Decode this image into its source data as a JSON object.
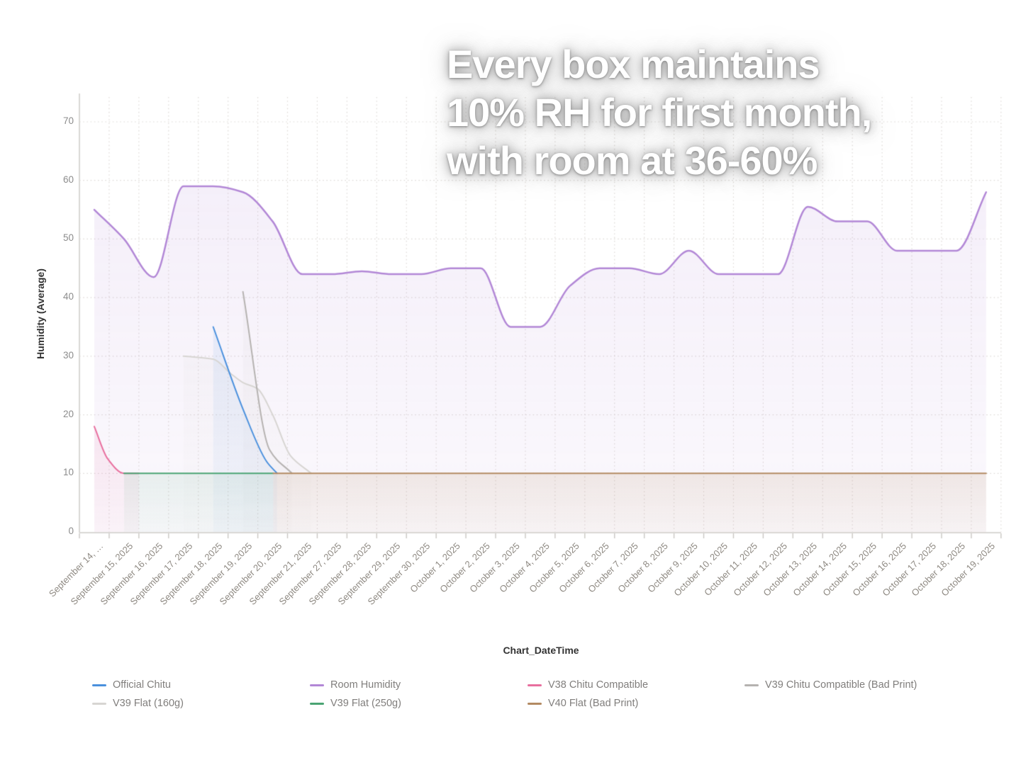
{
  "overlay_title": {
    "lines": [
      "Every box maintains",
      "10% RH for first month,",
      "with room at 36-60%"
    ]
  },
  "chart_data": {
    "type": "line",
    "xlabel": "Chart_DateTime",
    "ylabel": "Humidity (Average)",
    "ylim": [
      0,
      75
    ],
    "yticks": [
      0,
      10,
      20,
      30,
      40,
      50,
      60,
      70
    ],
    "grid": "dotted",
    "legend_position": "bottom",
    "x_labels": [
      "September 14, …",
      "September 15, 2025",
      "September 16, 2025",
      "September 17, 2025",
      "September 18, 2025",
      "September 19, 2025",
      "September 20, 2025",
      "September 21, 2025",
      "September 27, 2025",
      "September 28, 2025",
      "September 29, 2025",
      "September 30, 2025",
      "October 1, 2025",
      "October 2, 2025",
      "October 3, 2025",
      "October 4, 2025",
      "October 5, 2025",
      "October 6, 2025",
      "October 7, 2025",
      "October 8, 2025",
      "October 9, 2025",
      "October 10, 2025",
      "October 11, 2025",
      "October 12, 2025",
      "October 13, 2025",
      "October 14, 2025",
      "October 15, 2025",
      "October 16, 2025",
      "October 17, 2025",
      "October 18, 2025",
      "October 19, 2025"
    ],
    "series": [
      {
        "name": "Official Chitu",
        "color": "#4a90dd",
        "points": [
          [
            4,
            35
          ],
          [
            5,
            21
          ],
          [
            5.8,
            12
          ],
          [
            6.15,
            10
          ]
        ]
      },
      {
        "name": "Room Humidity",
        "color": "#b287d6",
        "points": [
          [
            0,
            55
          ],
          [
            1,
            50
          ],
          [
            2,
            43.5
          ],
          [
            3,
            59
          ],
          [
            4,
            59
          ],
          [
            5,
            58
          ],
          [
            6,
            53
          ],
          [
            7,
            44
          ],
          [
            8,
            44
          ],
          [
            9,
            44.5
          ],
          [
            10,
            44
          ],
          [
            11,
            44
          ],
          [
            12,
            45
          ],
          [
            13,
            45
          ],
          [
            14,
            35
          ],
          [
            15,
            35
          ],
          [
            16,
            42
          ],
          [
            17,
            45
          ],
          [
            18,
            45
          ],
          [
            19,
            44
          ],
          [
            20,
            48
          ],
          [
            21,
            44
          ],
          [
            22,
            44
          ],
          [
            23,
            44
          ],
          [
            24,
            55.5
          ],
          [
            25,
            53
          ],
          [
            26,
            53
          ],
          [
            27,
            48
          ],
          [
            28,
            48
          ],
          [
            29,
            48
          ],
          [
            30,
            58
          ]
        ]
      },
      {
        "name": "V38 Chitu Compatible",
        "color": "#e86f9e",
        "points": [
          [
            0,
            18
          ],
          [
            0.45,
            12.5
          ],
          [
            1,
            10
          ],
          [
            1.5,
            10
          ]
        ]
      },
      {
        "name": "V39 Chitu Compatible (Bad Print)",
        "color": "#b5b2b0",
        "points": [
          [
            5,
            41
          ],
          [
            5.9,
            14
          ],
          [
            6.65,
            10
          ]
        ]
      },
      {
        "name": "V39 Flat (160g)",
        "color": "#d7d5d2",
        "points": [
          [
            3,
            30
          ],
          [
            4,
            29.5
          ],
          [
            4.6,
            27
          ],
          [
            5,
            25.5
          ],
          [
            5.5,
            24.4
          ],
          [
            6,
            20
          ],
          [
            6.6,
            13
          ],
          [
            7.3,
            10
          ]
        ]
      },
      {
        "name": "V39 Flat (250g)",
        "color": "#4aa473",
        "points": [
          [
            1,
            10
          ],
          [
            6.02,
            10
          ]
        ]
      },
      {
        "name": "V40 Flat (Bad Print)",
        "color": "#b38a62",
        "points": [
          [
            6.02,
            10
          ],
          [
            30,
            10
          ]
        ]
      }
    ]
  }
}
